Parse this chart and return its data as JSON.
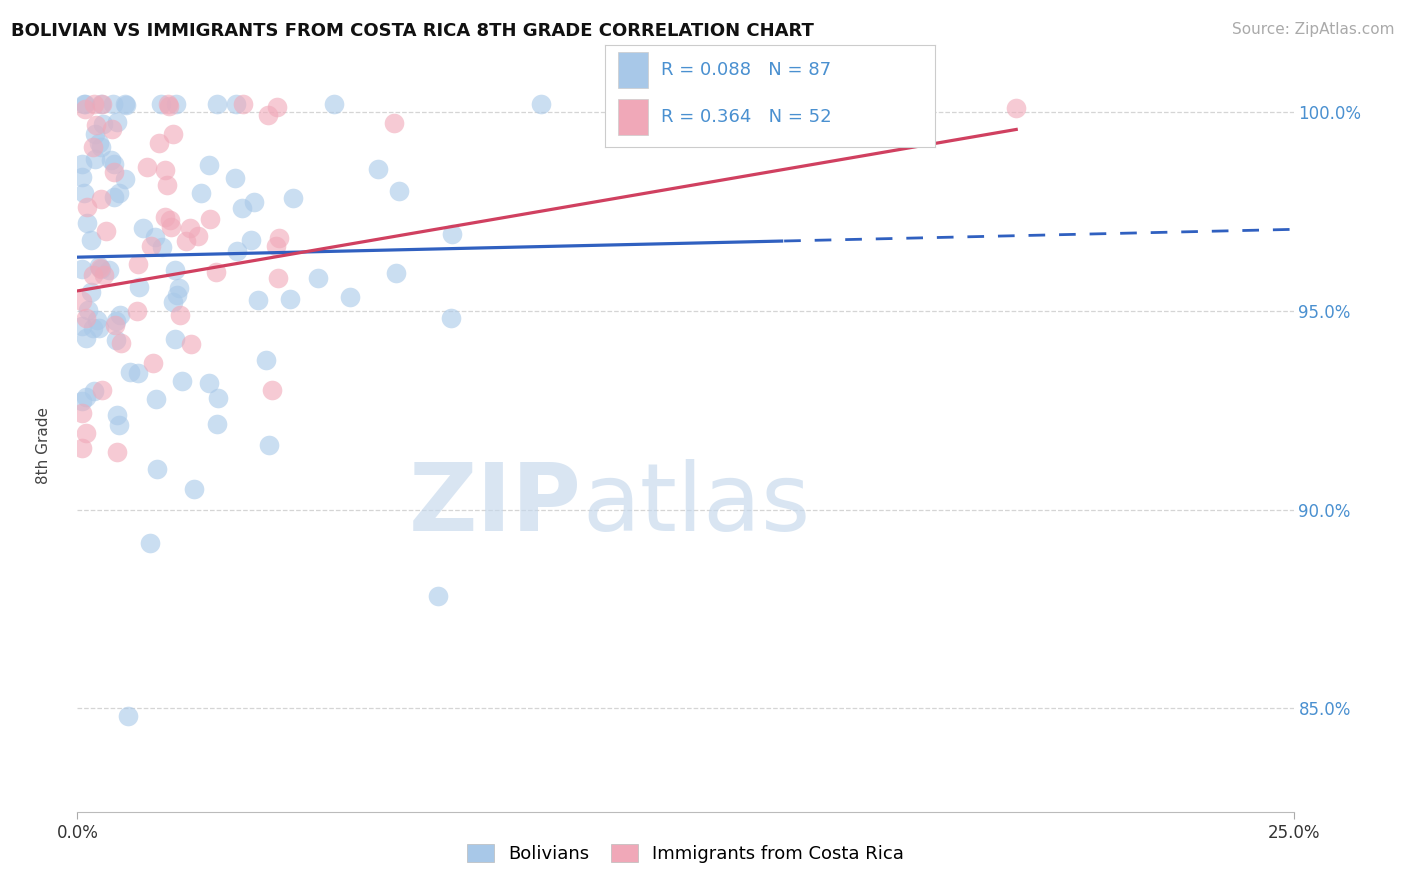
{
  "title": "BOLIVIAN VS IMMIGRANTS FROM COSTA RICA 8TH GRADE CORRELATION CHART",
  "source_text": "Source: ZipAtlas.com",
  "ylabel": "8th Grade",
  "xmin": 0.0,
  "xmax": 0.25,
  "ymin": 0.824,
  "ymax": 1.008,
  "blue_color": "#a8c8e8",
  "pink_color": "#f0a8b8",
  "blue_line_color": "#3060c0",
  "pink_line_color": "#d04060",
  "right_axis_color": "#4a90d0",
  "watermark_zip": "ZIP",
  "watermark_atlas": "atlas",
  "blue_r": 0.088,
  "blue_n": 87,
  "pink_r": 0.364,
  "pink_n": 52,
  "background_color": "#ffffff"
}
